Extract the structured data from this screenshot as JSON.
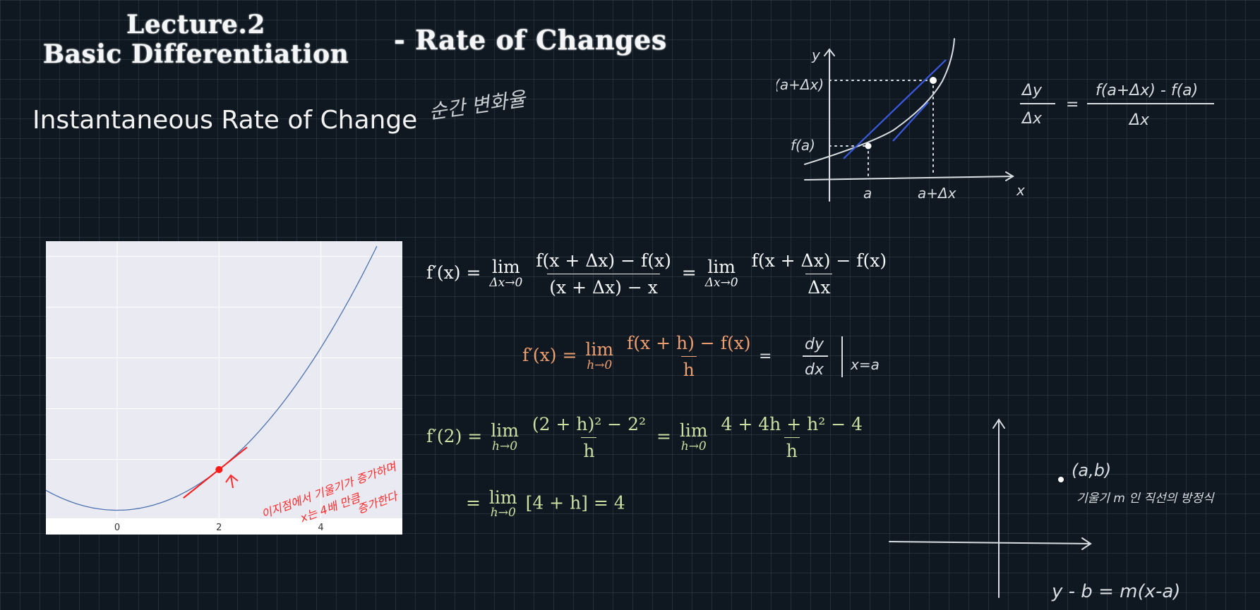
{
  "titles": {
    "line1": "Lecture.2",
    "line2": "Basic Differentiation",
    "sub": "- Rate of Changes",
    "subtitle": "Instantaneous Rate of Change"
  },
  "handwriting": {
    "korean_top": "순간 변화율",
    "dy_dx_label_y": "y",
    "f_a_dx": "f(a+Δx)",
    "f_a": "f(a)",
    "a": "a",
    "a_dx": "a+Δx",
    "x": "x",
    "ratio_num": "Δy",
    "ratio_den": "Δx",
    "ratio_eq": "=",
    "ratio_rhs_num": "f(a+Δx) - f(a)",
    "ratio_rhs_den": "Δx",
    "deriv_eq": "=",
    "deriv_num": "dy",
    "deriv_den": "dx",
    "deriv_at": "x=a",
    "point_ab": "(a,b)",
    "slope_note": "기울기 m 인 직선의 방정식",
    "line_eq": "y - b = m(x-a)",
    "plot_note_line1": "이지점에서 기울기가 증가하며",
    "plot_note_line2": "x는 4배 만큼",
    "plot_note_line3": "증가한다"
  },
  "equations": {
    "eq1": {
      "lhs": "f′(x) =",
      "lim": "lim",
      "lim_sub": "Δx→0",
      "num1": "f(x + Δx) − f(x)",
      "den1": "(x + Δx) − x",
      "eq": "=",
      "num2": "f(x + Δx) − f(x)",
      "den2": "Δx"
    },
    "eq2": {
      "lhs": "f′(x) =",
      "lim": "lim",
      "lim_sub": "h→0",
      "num": "f(x + h) − f(x)",
      "den": "h"
    },
    "eq3": {
      "lhs": "f′(2) =",
      "lim": "lim",
      "lim_sub": "h→0",
      "num1": "(2 + h)² − 2²",
      "den1": "h",
      "eq": "=",
      "num2": "4 + 4h + h² − 4",
      "den2": "h"
    },
    "eq4": {
      "lhs": "=",
      "lim": "lim",
      "lim_sub": "h→0",
      "body": "[4 + h] = 4"
    }
  },
  "chart_data": {
    "type": "line",
    "x_ticks": [
      "0",
      "2",
      "4"
    ],
    "xlim": [
      -1.4,
      5.6
    ],
    "ylim": [
      -0.8,
      26.5
    ],
    "series": [
      {
        "function": "y = x^2",
        "x_range": [
          -1.4,
          5.1
        ],
        "color": "#4c72b0"
      }
    ],
    "highlight_point": {
      "x": 2,
      "y": 4,
      "color": "#ff1a1a"
    },
    "tangent": {
      "slope": 4,
      "x_range": [
        1.3,
        2.55
      ],
      "color": "#ff1a1a"
    },
    "grid": true,
    "background": "#eaeaf2"
  }
}
